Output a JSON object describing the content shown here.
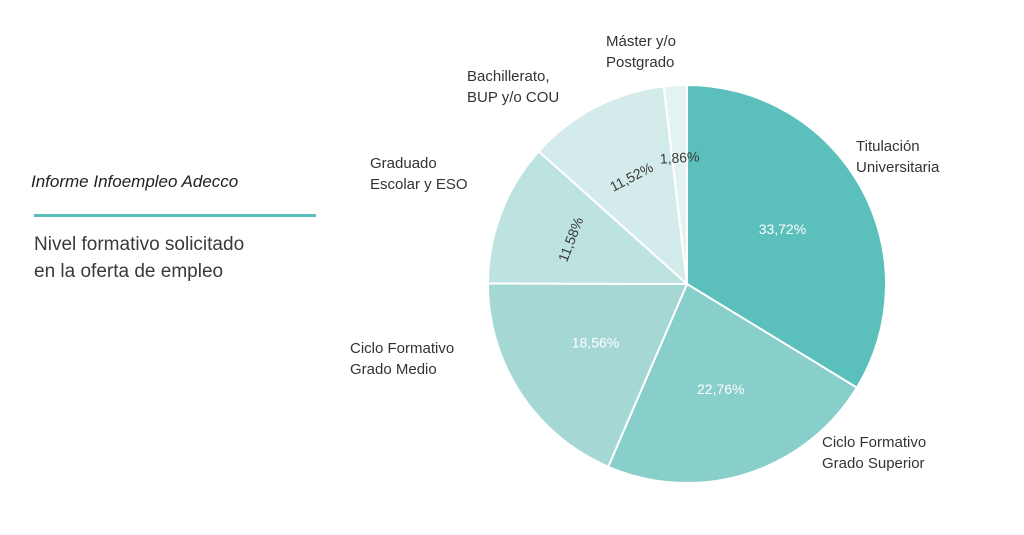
{
  "header": {
    "source": "Informe Infoempleo Adecco",
    "subtitle_line1": "Nivel formativo solicitado",
    "subtitle_line2": "en la oferta de empleo"
  },
  "colors": {
    "accent": "#5bbfbc",
    "slices": [
      "#5bbfbc",
      "#88ceca",
      "#a5d8d5",
      "#bde3e1",
      "#d3ebea",
      "#e4f3f2"
    ],
    "dark_label": "#3a3a3a",
    "light_label": "#ffffff"
  },
  "chart_data": {
    "type": "pie",
    "title": "",
    "slices": [
      {
        "name_lines": [
          "Titulación",
          "Universitaria"
        ],
        "value": 33.72,
        "label": "33,72%"
      },
      {
        "name_lines": [
          "Ciclo Formativo",
          "Grado Superior"
        ],
        "value": 22.76,
        "label": "22,76%"
      },
      {
        "name_lines": [
          "Ciclo Formativo",
          "Grado Medio"
        ],
        "value": 18.56,
        "label": "18,56%"
      },
      {
        "name_lines": [
          "Graduado",
          "Escolar y ESO"
        ],
        "value": 11.58,
        "label": "11,58%"
      },
      {
        "name_lines": [
          "Bachillerato,",
          "BUP y/o COU"
        ],
        "value": 11.52,
        "label": "11,52%"
      },
      {
        "name_lines": [
          "Máster y/o",
          "Postgrado"
        ],
        "value": 1.86,
        "label": "1,86%"
      }
    ]
  }
}
